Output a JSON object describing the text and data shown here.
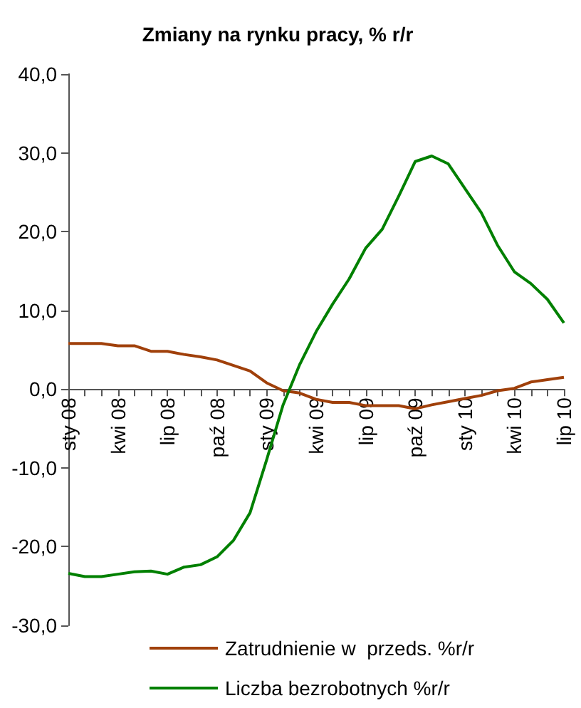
{
  "chart_data": {
    "type": "line",
    "title": "Zmiany na rynku pracy, % r/r",
    "categories": [
      "sty 08",
      null,
      null,
      "kwi 08",
      null,
      null,
      "lip 08",
      null,
      null,
      "paź 08",
      null,
      null,
      "sty 09",
      null,
      null,
      "kwi 09",
      null,
      null,
      "lip 09",
      null,
      null,
      "paź 09",
      null,
      null,
      "sty 10",
      null,
      null,
      "kwi 10",
      null,
      null,
      "lip 10"
    ],
    "series": [
      {
        "name": "Zatrudnienie w  przeds. %r/r",
        "color": "#a0400a",
        "values": [
          5.8,
          5.8,
          5.8,
          5.5,
          5.5,
          4.8,
          4.8,
          4.4,
          4.1,
          3.7,
          3.0,
          2.3,
          0.8,
          -0.2,
          -0.5,
          -1.3,
          -1.7,
          -1.7,
          -2.1,
          -2.1,
          -2.1,
          -2.5,
          -2.0,
          -1.6,
          -1.2,
          -0.8,
          -0.2,
          0.1,
          0.9,
          1.2,
          1.5
        ]
      },
      {
        "name": "Liczba bezrobotnych %r/r",
        "color": "#008000",
        "values": [
          -23.4,
          -23.8,
          -23.8,
          -23.5,
          -23.2,
          -23.1,
          -23.5,
          -22.6,
          -22.3,
          -21.3,
          -19.2,
          -15.7,
          -9.0,
          -2.0,
          3.1,
          7.3,
          10.8,
          14.0,
          17.9,
          20.3,
          24.5,
          28.9,
          29.6,
          28.6,
          25.5,
          22.4,
          18.2,
          14.9,
          13.4,
          11.4,
          8.4
        ]
      }
    ],
    "ylim": [
      -30,
      40
    ],
    "yticks": [
      {
        "value": -30,
        "label": "-30,0"
      },
      {
        "value": -20,
        "label": "-20,0"
      },
      {
        "value": -10,
        "label": "-10,0"
      },
      {
        "value": 0,
        "label": "0,0"
      },
      {
        "value": 10,
        "label": "10,0"
      },
      {
        "value": 20,
        "label": "20,0"
      },
      {
        "value": 30,
        "label": "30,0"
      },
      {
        "value": 40,
        "label": "40,0"
      }
    ],
    "legend": "bottom",
    "marker": "none",
    "line_style": "solid"
  }
}
